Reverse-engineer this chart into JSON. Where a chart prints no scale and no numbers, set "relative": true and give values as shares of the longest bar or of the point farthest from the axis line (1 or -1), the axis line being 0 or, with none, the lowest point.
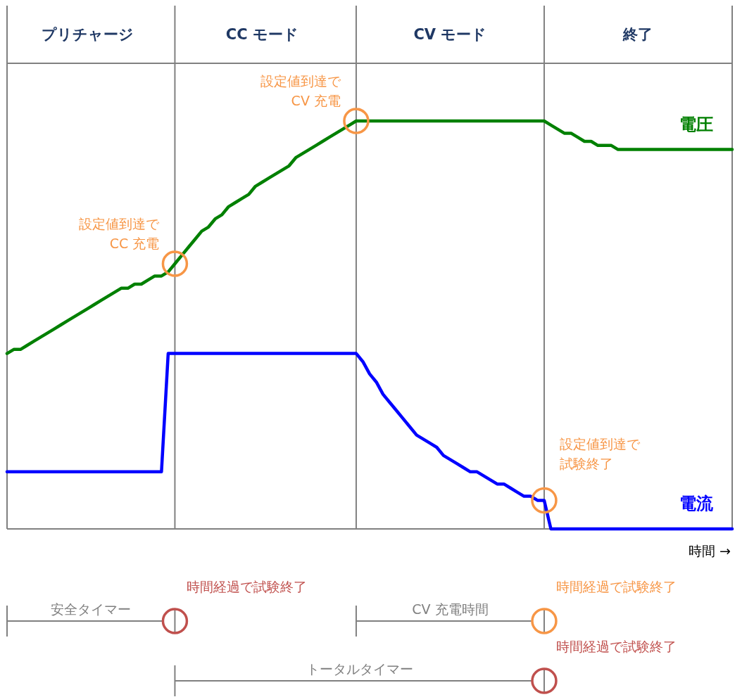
{
  "chart_data": {
    "type": "line",
    "relative": true,
    "xlabel": "時間 →",
    "categories": [
      null,
      null,
      null,
      null,
      null,
      null,
      null,
      null,
      null,
      null,
      null,
      null,
      "プリチャージ",
      null,
      null,
      null,
      null,
      null,
      null,
      null,
      null,
      null,
      null,
      null,
      null,
      null,
      null,
      null,
      null,
      null,
      null,
      null,
      null,
      null,
      null,
      null,
      null,
      null,
      "CC モード",
      null,
      null,
      null,
      null,
      null,
      null,
      null,
      null,
      null,
      null,
      null,
      null,
      null,
      null,
      null,
      null,
      null,
      null,
      null,
      null,
      null,
      null,
      null,
      null,
      null,
      null,
      null,
      "CV モード",
      null,
      null,
      null,
      null,
      null,
      null,
      null,
      null,
      null,
      null,
      null,
      null,
      null,
      null,
      null,
      null,
      null,
      null,
      null,
      null,
      null,
      null,
      null,
      null,
      null,
      null,
      null,
      "終了",
      null,
      null,
      null,
      null,
      null,
      null,
      null,
      null,
      null,
      null,
      null,
      null,
      null,
      null
    ],
    "series": [
      {
        "name": "電圧",
        "color": "#008000",
        "values": [
          0.43,
          0.44,
          0.44,
          0.45,
          0.46,
          0.47,
          0.48,
          0.49,
          0.5,
          0.51,
          0.52,
          0.53,
          0.54,
          0.55,
          0.56,
          0.57,
          0.58,
          0.59,
          0.59,
          0.6,
          0.6,
          0.61,
          0.62,
          0.62,
          0.63,
          0.65,
          0.67,
          0.69,
          0.71,
          0.73,
          0.74,
          0.76,
          0.77,
          0.79,
          0.8,
          0.81,
          0.82,
          0.84,
          0.85,
          0.86,
          0.87,
          0.88,
          0.89,
          0.91,
          0.92,
          0.93,
          0.94,
          0.95,
          0.96,
          0.97,
          0.98,
          0.99,
          1,
          1,
          1,
          1,
          1,
          1,
          1,
          1,
          1,
          1,
          1,
          1,
          1,
          1,
          1,
          1,
          1,
          1,
          1,
          1,
          1,
          1,
          1,
          1,
          1,
          1,
          1,
          1,
          1,
          0.99,
          0.98,
          0.97,
          0.97,
          0.96,
          0.95,
          0.95,
          0.94,
          0.94,
          0.94,
          0.93,
          0.93,
          0.93,
          0.93,
          0.93,
          0.93,
          0.93,
          0.93,
          0.93,
          0.93,
          0.93,
          0.93,
          0.93,
          0.93,
          0.93,
          0.93,
          0.93,
          0.93
        ]
      },
      {
        "name": "電流",
        "color": "#0000ff",
        "values": [
          0.14,
          0.14,
          0.14,
          0.14,
          0.14,
          0.14,
          0.14,
          0.14,
          0.14,
          0.14,
          0.14,
          0.14,
          0.14,
          0.14,
          0.14,
          0.14,
          0.14,
          0.14,
          0.14,
          0.14,
          0.14,
          0.14,
          0.14,
          0.14,
          0.43,
          0.43,
          0.43,
          0.43,
          0.43,
          0.43,
          0.43,
          0.43,
          0.43,
          0.43,
          0.43,
          0.43,
          0.43,
          0.43,
          0.43,
          0.43,
          0.43,
          0.43,
          0.43,
          0.43,
          0.43,
          0.43,
          0.43,
          0.43,
          0.43,
          0.43,
          0.43,
          0.43,
          0.43,
          0.41,
          0.38,
          0.36,
          0.33,
          0.31,
          0.29,
          0.27,
          0.25,
          0.23,
          0.22,
          0.21,
          0.2,
          0.18,
          0.17,
          0.16,
          0.15,
          0.14,
          0.14,
          0.13,
          0.12,
          0.11,
          0.11,
          0.1,
          0.09,
          0.08,
          0.08,
          0.07,
          0.07,
          0,
          0,
          0,
          0,
          0,
          0,
          0,
          0,
          0,
          0,
          0,
          0,
          0,
          0,
          0,
          0,
          0,
          0,
          0,
          0,
          0,
          0,
          0,
          0,
          0,
          0,
          0,
          0
        ]
      }
    ],
    "annotations": [
      "設定値到達でCC 充電",
      "設定値到達でCV 充電",
      "設定値到達で試験終了",
      "安全タイマー",
      "CV 充電時間",
      "トータルタイマー",
      "時間経過で試験終了",
      "時間経過で試験終了",
      "時間経過で試験終了"
    ]
  }
}
